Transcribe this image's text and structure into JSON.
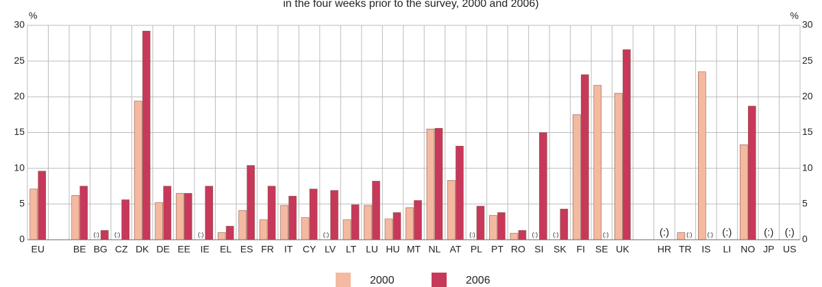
{
  "chart_data": {
    "type": "bar",
    "title": "in the four weeks prior to the survey, 2000 and 2006)",
    "y_unit": "%",
    "categories": [
      "EU",
      null,
      "BE",
      "BG",
      "CZ",
      "DK",
      "DE",
      "EE",
      "IE",
      "EL",
      "ES",
      "FR",
      "IT",
      "CY",
      "LV",
      "LT",
      "LU",
      "HU",
      "MT",
      "NL",
      "AT",
      "PL",
      "PT",
      "RO",
      "SI",
      "SK",
      "FI",
      "SE",
      "UK",
      null,
      "HR",
      "TR",
      "IS",
      "LI",
      "NO",
      "JP",
      "US"
    ],
    "series": [
      {
        "name": "2000",
        "color": "#f4b9a0",
        "values": [
          7.1,
          null,
          6.2,
          null,
          null,
          19.4,
          5.2,
          6.5,
          null,
          1.0,
          4.1,
          2.8,
          4.8,
          3.1,
          null,
          2.8,
          4.8,
          2.9,
          4.5,
          15.5,
          8.3,
          null,
          3.4,
          0.9,
          null,
          null,
          17.5,
          21.6,
          20.5,
          null,
          null,
          1.0,
          23.5,
          null,
          13.3,
          null,
          null
        ],
        "value_labels": [
          null,
          null,
          null,
          "(:)",
          "(:)",
          null,
          null,
          null,
          "(:)",
          null,
          null,
          null,
          null,
          null,
          "(:)",
          null,
          null,
          null,
          null,
          null,
          null,
          "(:)",
          null,
          null,
          "(:)",
          "(:)",
          null,
          null,
          null,
          null,
          "(:)",
          null,
          null,
          "(:)",
          null,
          "(:)",
          "(:)"
        ]
      },
      {
        "name": "2006",
        "color": "#c8385a",
        "values": [
          9.6,
          null,
          7.5,
          1.3,
          5.6,
          29.2,
          7.5,
          6.5,
          7.5,
          1.9,
          10.4,
          7.5,
          6.1,
          7.1,
          6.9,
          4.9,
          8.2,
          3.8,
          5.5,
          15.6,
          13.1,
          4.7,
          3.8,
          1.3,
          15.0,
          4.3,
          23.1,
          null,
          26.6,
          null,
          null,
          null,
          null,
          null,
          18.7,
          null,
          null
        ],
        "value_labels": [
          null,
          null,
          null,
          null,
          null,
          null,
          null,
          null,
          null,
          null,
          null,
          null,
          null,
          null,
          null,
          null,
          null,
          null,
          null,
          null,
          null,
          null,
          null,
          null,
          null,
          null,
          null,
          "(:)",
          null,
          null,
          null,
          "(:)",
          "(:)",
          null,
          null,
          null,
          null
        ]
      }
    ],
    "ylim": [
      0,
      30
    ],
    "yticks": [
      0,
      5,
      10,
      15,
      20,
      25,
      30
    ],
    "grid": true
  }
}
